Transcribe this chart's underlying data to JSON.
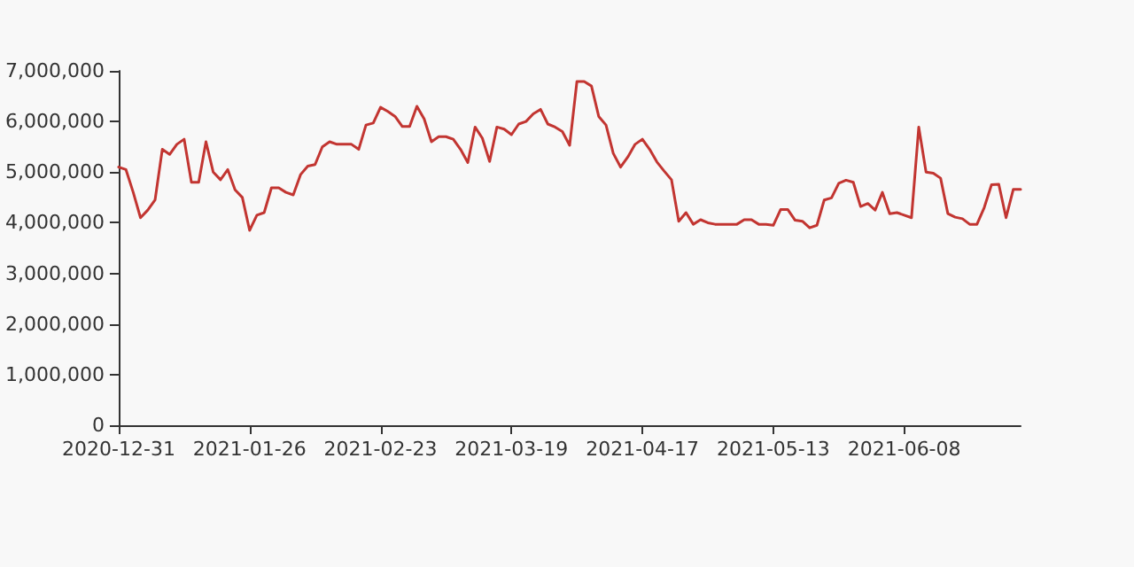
{
  "chart_data": {
    "type": "line",
    "categories": [
      "2020-12-31",
      null,
      null,
      null,
      null,
      null,
      null,
      null,
      null,
      null,
      null,
      null,
      null,
      null,
      null,
      null,
      null,
      null,
      "2021-01-26",
      null,
      null,
      null,
      null,
      null,
      null,
      null,
      null,
      null,
      null,
      null,
      null,
      null,
      null,
      null,
      null,
      null,
      "2021-02-23",
      null,
      null,
      null,
      null,
      null,
      null,
      null,
      null,
      null,
      null,
      null,
      null,
      null,
      null,
      null,
      null,
      null,
      "2021-03-19",
      null,
      null,
      null,
      null,
      null,
      null,
      null,
      null,
      null,
      null,
      null,
      null,
      null,
      null,
      null,
      null,
      null,
      "2021-04-17",
      null,
      null,
      null,
      null,
      null,
      null,
      null,
      null,
      null,
      null,
      null,
      null,
      null,
      null,
      null,
      null,
      null,
      "2021-05-13",
      null,
      null,
      null,
      null,
      null,
      null,
      null,
      null,
      null,
      null,
      null,
      null,
      null,
      null,
      null,
      null,
      null,
      "2021-06-08",
      null,
      null,
      null,
      null,
      null,
      null,
      null,
      null,
      null,
      null,
      null,
      null,
      null,
      null,
      null,
      null
    ],
    "series": [
      {
        "color": "#c23531",
        "values": [
          5100000,
          5050000,
          4600000,
          4100000,
          4250000,
          4450000,
          5450000,
          5350000,
          5550000,
          5650000,
          4800000,
          4800000,
          5600000,
          5000000,
          4850000,
          5050000,
          4650000,
          4500000,
          3850000,
          4150000,
          4200000,
          4690000,
          4690000,
          4600000,
          4550000,
          4950000,
          5120000,
          5150000,
          5500000,
          5600000,
          5550000,
          5550000,
          5550000,
          5450000,
          5930000,
          5970000,
          6280000,
          6200000,
          6100000,
          5900000,
          5900000,
          6300000,
          6050000,
          5600000,
          5700000,
          5700000,
          5650000,
          5450000,
          5190000,
          5890000,
          5670000,
          5210000,
          5890000,
          5850000,
          5740000,
          5950000,
          6000000,
          6150000,
          6240000,
          5950000,
          5890000,
          5800000,
          5530000,
          6790000,
          6790000,
          6700000,
          6100000,
          5930000,
          5370000,
          5100000,
          5300000,
          5550000,
          5650000,
          5450000,
          5200000,
          5020000,
          4850000,
          4030000,
          4200000,
          3970000,
          4060000,
          4000000,
          3970000,
          3970000,
          3970000,
          3970000,
          4060000,
          4060000,
          3970000,
          3970000,
          3950000,
          4260000,
          4260000,
          4050000,
          4030000,
          3900000,
          3950000,
          4450000,
          4490000,
          4780000,
          4840000,
          4800000,
          4320000,
          4380000,
          4250000,
          4600000,
          4180000,
          4200000,
          4150000,
          4100000,
          5890000,
          5000000,
          4980000,
          4880000,
          4180000,
          4110000,
          4080000,
          3970000,
          3970000,
          4300000,
          4750000,
          4760000,
          4100000,
          4660000,
          4660000
        ]
      }
    ],
    "ylim": [
      0,
      7000000
    ],
    "yticks": [
      0,
      {
        "value": 1000000,
        "label": "1,000,000"
      },
      {
        "value": 2000000,
        "label": "2,000,000"
      },
      {
        "value": 3000000,
        "label": "3,000,000"
      },
      {
        "value": 4000000,
        "label": "4,000,000"
      },
      {
        "value": 5000000,
        "label": "5,000,000"
      },
      {
        "value": 6000000,
        "label": "6,000,000"
      },
      {
        "value": 7000000,
        "label": "7,000,000"
      }
    ],
    "marker": "none",
    "line_style": "solid"
  }
}
